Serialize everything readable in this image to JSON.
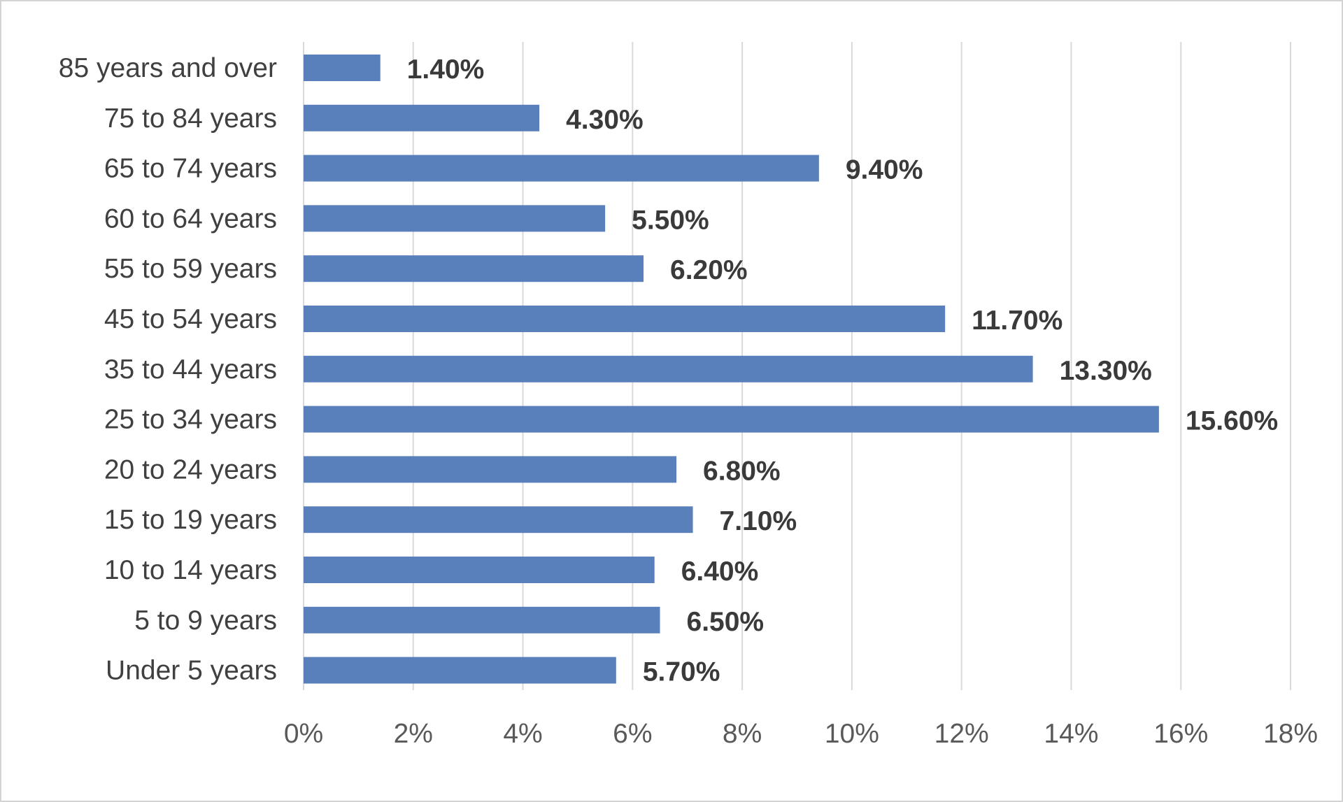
{
  "chart_data": {
    "type": "bar",
    "orientation": "horizontal",
    "title": "",
    "xlabel": "",
    "ylabel": "",
    "categories": [
      "85 years and over",
      "75 to 84 years",
      "65 to 74 years",
      "60 to 64 years",
      "55 to 59 years",
      "45 to 54 years",
      "35 to 44 years",
      "25 to 34 years",
      "20 to 24 years",
      "15 to 19 years",
      "10 to 14 years",
      "5 to 9 years",
      "Under 5 years"
    ],
    "values": [
      1.4,
      4.3,
      9.4,
      5.5,
      6.2,
      11.7,
      13.3,
      15.6,
      6.8,
      7.1,
      6.4,
      6.5,
      5.7
    ],
    "data_labels": [
      "1.40%",
      "4.30%",
      "9.40%",
      "5.50%",
      "6.20%",
      "11.70%",
      "13.30%",
      "15.60%",
      "6.80%",
      "7.10%",
      "6.40%",
      "6.50%",
      "5.70%"
    ],
    "xlim": [
      0,
      18
    ],
    "x_ticks": [
      0,
      2,
      4,
      6,
      8,
      10,
      12,
      14,
      16,
      18
    ],
    "x_tick_labels": [
      "0%",
      "2%",
      "4%",
      "6%",
      "8%",
      "10%",
      "12%",
      "14%",
      "16%",
      "18%"
    ],
    "grid": "vertical",
    "legend": "none",
    "colors": {
      "bar": "#5a80bb",
      "gridline": "#d9d9d9",
      "label_text": "#404040",
      "value_text": "#3a3a3a",
      "tick_text": "#595959"
    }
  }
}
